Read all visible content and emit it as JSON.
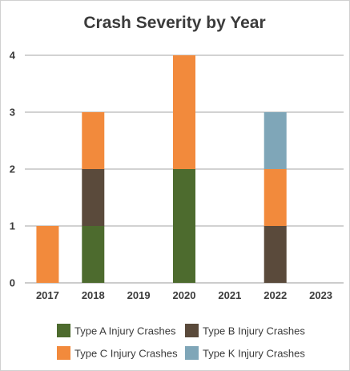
{
  "chart_data": {
    "type": "bar",
    "stacked": true,
    "title": "Crash Severity by Year",
    "xlabel": "",
    "ylabel": "",
    "categories": [
      "2017",
      "2018",
      "2019",
      "2020",
      "2021",
      "2022",
      "2023"
    ],
    "ylim": [
      0,
      4
    ],
    "yticks": [
      0,
      1,
      2,
      3,
      4
    ],
    "grid": true,
    "legend_position": "bottom",
    "series": [
      {
        "name": "Type A Injury Crashes",
        "color": "#4d6b2e",
        "values": [
          0,
          1,
          0,
          2,
          0,
          0,
          0
        ]
      },
      {
        "name": "Type B Injury Crashes",
        "color": "#5a4a3b",
        "values": [
          0,
          1,
          0,
          0,
          0,
          1,
          0
        ]
      },
      {
        "name": "Type C Injury Crashes",
        "color": "#f28a3c",
        "values": [
          1,
          1,
          0,
          2,
          0,
          1,
          0
        ]
      },
      {
        "name": "Type K Injury Crashes",
        "color": "#7fa6b8",
        "values": [
          0,
          0,
          0,
          0,
          0,
          1,
          0
        ]
      }
    ]
  }
}
